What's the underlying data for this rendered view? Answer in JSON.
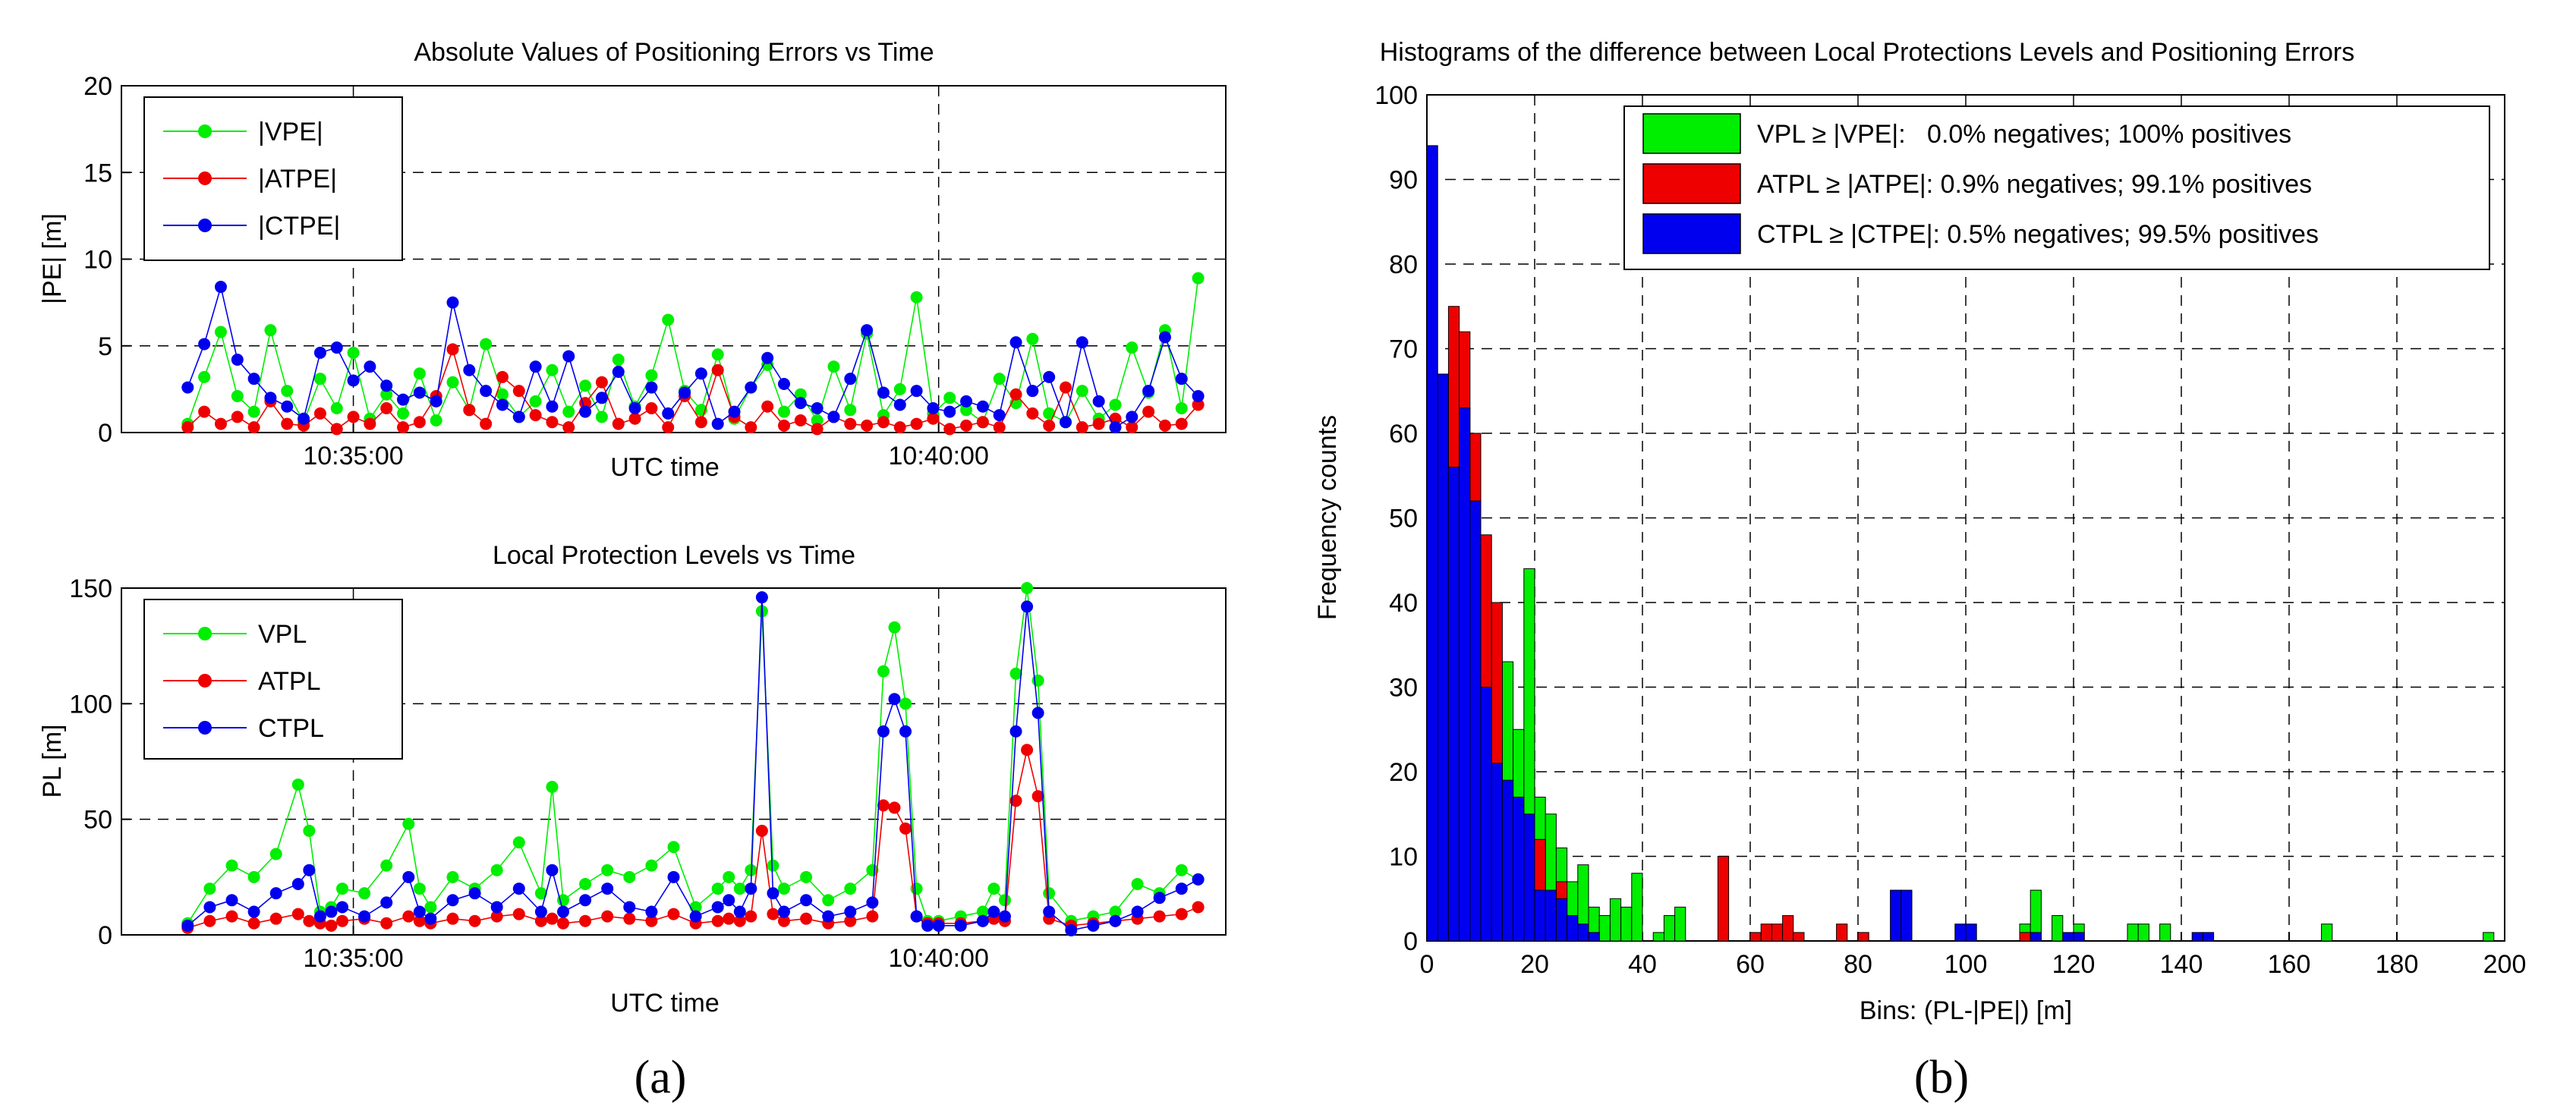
{
  "colors": {
    "green": "#00ee00",
    "red": "#ee0000",
    "blue": "#0000ee",
    "axis": "#000000",
    "grid": "#000000"
  },
  "chart_data": [
    {
      "id": "errors",
      "type": "line",
      "title": "Absolute Values of Positioning Errors vs Time",
      "xlabel": "UTC time",
      "ylabel": "|PE| [m]",
      "xlim": [
        0,
        100
      ],
      "ylim": [
        0,
        20
      ],
      "yticks": [
        0,
        5,
        10,
        15,
        20
      ],
      "xticks": [
        {
          "x": 21,
          "label": "10:35:00"
        },
        {
          "x": 74,
          "label": "10:40:00"
        }
      ],
      "legend_position": "top-left",
      "series": [
        {
          "name": "|VPE|",
          "color": "green",
          "x": [
            6,
            7.5,
            9,
            10.5,
            12,
            13.5,
            15,
            16.5,
            18,
            19.5,
            21,
            22.5,
            24,
            25.5,
            27,
            28.5,
            30,
            31.5,
            33,
            34.5,
            36,
            37.5,
            39,
            40.5,
            42,
            43.5,
            45,
            46.5,
            48,
            49.5,
            51,
            52.5,
            54,
            55.5,
            57,
            58.5,
            60,
            61.5,
            63,
            64.5,
            66,
            67.5,
            69,
            70.5,
            72,
            73.5,
            75,
            76.5,
            78,
            79.5,
            81,
            82.5,
            84,
            85.5,
            87,
            88.5,
            90,
            91.5,
            93,
            94.5,
            96,
            97.5
          ],
          "y": [
            0.5,
            3.2,
            5.8,
            2.1,
            1.2,
            5.9,
            2.4,
            0.6,
            3.1,
            1.4,
            4.6,
            0.8,
            2.2,
            1.1,
            3.4,
            0.7,
            2.9,
            1.3,
            5.1,
            2.2,
            0.9,
            1.8,
            3.6,
            1.2,
            2.7,
            0.9,
            4.2,
            1.5,
            3.3,
            6.5,
            2.4,
            1.3,
            4.5,
            0.8,
            2.6,
            3.9,
            1.2,
            2.2,
            0.7,
            3.8,
            1.3,
            5.7,
            1.0,
            2.5,
            7.8,
            1.1,
            2.0,
            1.3,
            0.6,
            3.1,
            1.7,
            5.4,
            1.1,
            0.6,
            2.4,
            0.8,
            1.6,
            4.9,
            2.3,
            5.9,
            1.4,
            8.9
          ]
        },
        {
          "name": "|ATPE|",
          "color": "red",
          "x": [
            6,
            7.5,
            9,
            10.5,
            12,
            13.5,
            15,
            16.5,
            18,
            19.5,
            21,
            22.5,
            24,
            25.5,
            27,
            28.5,
            30,
            31.5,
            33,
            34.5,
            36,
            37.5,
            39,
            40.5,
            42,
            43.5,
            45,
            46.5,
            48,
            49.5,
            51,
            52.5,
            54,
            55.5,
            57,
            58.5,
            60,
            61.5,
            63,
            64.5,
            66,
            67.5,
            69,
            70.5,
            72,
            73.5,
            75,
            76.5,
            78,
            79.5,
            81,
            82.5,
            84,
            85.5,
            87,
            88.5,
            90,
            91.5,
            93,
            94.5,
            96,
            97.5
          ],
          "y": [
            0.3,
            1.2,
            0.5,
            0.9,
            0.3,
            1.8,
            0.5,
            0.4,
            1.1,
            0.2,
            0.9,
            0.5,
            1.4,
            0.3,
            0.6,
            2.1,
            4.8,
            1.3,
            0.5,
            3.2,
            2.4,
            1.0,
            0.6,
            0.3,
            1.7,
            2.9,
            0.5,
            0.8,
            1.4,
            0.3,
            2.1,
            0.6,
            3.6,
            0.9,
            0.3,
            1.5,
            0.4,
            0.7,
            0.2,
            0.9,
            0.5,
            0.4,
            0.6,
            0.3,
            0.5,
            0.8,
            0.2,
            0.4,
            0.6,
            0.3,
            2.2,
            1.1,
            0.4,
            2.6,
            0.3,
            0.5,
            0.8,
            0.3,
            1.2,
            0.4,
            0.5,
            1.6
          ]
        },
        {
          "name": "|CTPE|",
          "color": "blue",
          "x": [
            6,
            7.5,
            9,
            10.5,
            12,
            13.5,
            15,
            16.5,
            18,
            19.5,
            21,
            22.5,
            24,
            25.5,
            27,
            28.5,
            30,
            31.5,
            33,
            34.5,
            36,
            37.5,
            39,
            40.5,
            42,
            43.5,
            45,
            46.5,
            48,
            49.5,
            51,
            52.5,
            54,
            55.5,
            57,
            58.5,
            60,
            61.5,
            63,
            64.5,
            66,
            67.5,
            69,
            70.5,
            72,
            73.5,
            75,
            76.5,
            78,
            79.5,
            81,
            82.5,
            84,
            85.5,
            87,
            88.5,
            90,
            91.5,
            93,
            94.5,
            96,
            97.5
          ],
          "y": [
            2.6,
            5.1,
            8.4,
            4.2,
            3.1,
            2.0,
            1.5,
            0.8,
            4.6,
            4.9,
            3.0,
            3.8,
            2.7,
            1.9,
            2.3,
            1.8,
            7.5,
            3.6,
            2.4,
            1.6,
            0.9,
            3.8,
            1.5,
            4.4,
            1.2,
            2.0,
            3.5,
            1.4,
            2.6,
            1.1,
            2.3,
            3.4,
            0.5,
            1.2,
            2.6,
            4.3,
            2.8,
            1.7,
            1.4,
            0.9,
            3.1,
            5.9,
            2.3,
            1.6,
            2.4,
            1.4,
            1.2,
            1.8,
            1.5,
            1.0,
            5.2,
            2.4,
            3.2,
            0.6,
            5.2,
            1.8,
            0.3,
            0.9,
            2.4,
            5.5,
            3.1,
            2.1
          ]
        }
      ]
    },
    {
      "id": "levels",
      "type": "line",
      "title": "Local Protection Levels vs Time",
      "xlabel": "UTC time",
      "ylabel": "PL [m]",
      "xlim": [
        0,
        100
      ],
      "ylim": [
        0,
        150
      ],
      "yticks": [
        0,
        50,
        100,
        150
      ],
      "xticks": [
        {
          "x": 21,
          "label": "10:35:00"
        },
        {
          "x": 74,
          "label": "10:40:00"
        }
      ],
      "legend_position": "top-left",
      "series": [
        {
          "name": "VPL",
          "color": "green",
          "x": [
            6,
            8,
            10,
            12,
            14,
            16,
            17,
            18,
            19,
            20,
            22,
            24,
            26,
            27,
            28,
            30,
            32,
            34,
            36,
            38,
            39,
            40,
            42,
            44,
            46,
            48,
            50,
            52,
            54,
            55,
            56,
            57,
            58,
            59,
            60,
            62,
            64,
            66,
            68,
            69,
            70,
            71,
            72,
            73,
            74,
            76,
            78,
            79,
            80,
            81,
            82,
            83,
            84,
            86,
            88,
            90,
            92,
            94,
            96,
            97.5
          ],
          "y": [
            5,
            20,
            30,
            25,
            35,
            65,
            45,
            10,
            12,
            20,
            18,
            30,
            48,
            20,
            12,
            25,
            20,
            28,
            40,
            18,
            64,
            15,
            22,
            28,
            25,
            30,
            38,
            12,
            20,
            25,
            20,
            28,
            140,
            30,
            20,
            25,
            15,
            20,
            28,
            114,
            133,
            100,
            20,
            6,
            6,
            8,
            10,
            20,
            15,
            113,
            150,
            110,
            18,
            6,
            8,
            10,
            22,
            18,
            28,
            24
          ]
        },
        {
          "name": "ATPL",
          "color": "red",
          "x": [
            6,
            8,
            10,
            12,
            14,
            16,
            17,
            18,
            19,
            20,
            22,
            24,
            26,
            27,
            28,
            30,
            32,
            34,
            36,
            38,
            39,
            40,
            42,
            44,
            46,
            48,
            50,
            52,
            54,
            55,
            56,
            57,
            58,
            59,
            60,
            62,
            64,
            66,
            68,
            69,
            70,
            71,
            72,
            73,
            74,
            76,
            78,
            79,
            80,
            81,
            82,
            83,
            84,
            86,
            88,
            90,
            92,
            94,
            96,
            97.5
          ],
          "y": [
            3,
            6,
            8,
            5,
            7,
            9,
            6,
            5,
            4,
            6,
            7,
            5,
            8,
            6,
            5,
            7,
            6,
            8,
            9,
            6,
            7,
            5,
            6,
            8,
            7,
            6,
            9,
            5,
            6,
            7,
            6,
            8,
            45,
            9,
            6,
            7,
            5,
            6,
            8,
            56,
            55,
            46,
            8,
            5,
            5,
            5,
            6,
            7,
            6,
            58,
            80,
            60,
            7,
            4,
            5,
            6,
            7,
            8,
            9,
            12
          ]
        },
        {
          "name": "CTPL",
          "color": "blue",
          "x": [
            6,
            8,
            10,
            12,
            14,
            16,
            17,
            18,
            19,
            20,
            22,
            24,
            26,
            27,
            28,
            30,
            32,
            34,
            36,
            38,
            39,
            40,
            42,
            44,
            46,
            48,
            50,
            52,
            54,
            55,
            56,
            57,
            58,
            59,
            60,
            62,
            64,
            66,
            68,
            69,
            70,
            71,
            72,
            73,
            74,
            76,
            78,
            79,
            80,
            81,
            82,
            83,
            84,
            86,
            88,
            90,
            92,
            94,
            96,
            97.5
          ],
          "y": [
            4,
            12,
            15,
            10,
            18,
            22,
            28,
            8,
            10,
            12,
            8,
            14,
            25,
            10,
            7,
            15,
            18,
            12,
            20,
            10,
            28,
            10,
            15,
            20,
            12,
            10,
            25,
            8,
            12,
            15,
            10,
            20,
            146,
            18,
            10,
            15,
            8,
            10,
            14,
            88,
            102,
            88,
            8,
            4,
            4,
            4,
            6,
            10,
            8,
            88,
            142,
            96,
            10,
            2,
            4,
            6,
            10,
            16,
            20,
            24
          ]
        }
      ]
    },
    {
      "id": "histograms",
      "type": "bar",
      "title": "Histograms of the difference between Local Protections Levels and Positioning Errors",
      "xlabel": "Bins: (PL-|PE|) [m]",
      "ylabel": "Frequency counts",
      "xlim": [
        0,
        200
      ],
      "ylim": [
        0,
        100
      ],
      "xticks": [
        0,
        20,
        40,
        60,
        80,
        100,
        120,
        140,
        160,
        180,
        200
      ],
      "yticks": [
        0,
        10,
        20,
        30,
        40,
        50,
        60,
        70,
        80,
        90,
        100
      ],
      "bin_width": 2,
      "legend_position": "top-right",
      "legend": [
        {
          "label": "VPL ≥ |VPE|:   0.0% negatives; 100% positives",
          "color": "green"
        },
        {
          "label": "ATPL ≥ |ATPE|: 0.9% negatives; 99.1% positives",
          "color": "red"
        },
        {
          "label": "CTPL ≥ |CTPE|: 0.5% negatives; 99.5% positives",
          "color": "blue"
        }
      ],
      "series": [
        {
          "name": "VPL ≥ |VPE|",
          "color": "green",
          "bins": [
            0,
            2,
            4,
            6,
            8,
            10,
            12,
            14,
            16,
            18,
            20,
            22,
            24,
            26,
            28,
            30,
            32,
            34,
            36,
            38,
            42,
            44,
            46,
            110,
            112,
            116,
            120,
            130,
            132,
            136,
            166,
            196
          ],
          "values": [
            20,
            30,
            45,
            55,
            52,
            35,
            28,
            33,
            25,
            44,
            17,
            15,
            11,
            7,
            9,
            4,
            3,
            5,
            4,
            8,
            1,
            3,
            4,
            2,
            6,
            3,
            2,
            2,
            2,
            2,
            2,
            1
          ]
        },
        {
          "name": "ATPL ≥ |ATPE|",
          "color": "red",
          "bins": [
            0,
            2,
            4,
            6,
            8,
            10,
            12,
            18,
            20,
            24,
            54,
            60,
            62,
            64,
            66,
            68,
            76,
            80,
            110
          ],
          "values": [
            67,
            42,
            75,
            72,
            60,
            48,
            40,
            14,
            12,
            7,
            10,
            1,
            2,
            2,
            3,
            1,
            2,
            1,
            1
          ]
        },
        {
          "name": "CTPL ≥ |CTPE|",
          "color": "blue",
          "bins": [
            0,
            2,
            4,
            6,
            8,
            10,
            12,
            14,
            16,
            18,
            20,
            22,
            24,
            26,
            28,
            30,
            86,
            88,
            98,
            100,
            112,
            118,
            120,
            142,
            144
          ],
          "values": [
            94,
            67,
            56,
            63,
            52,
            30,
            21,
            19,
            17,
            15,
            6,
            6,
            5,
            3,
            2,
            1,
            6,
            6,
            2,
            2,
            1,
            1,
            1,
            1,
            1
          ]
        }
      ]
    }
  ],
  "sublabels": {
    "a": "(a)",
    "b": "(b)"
  }
}
